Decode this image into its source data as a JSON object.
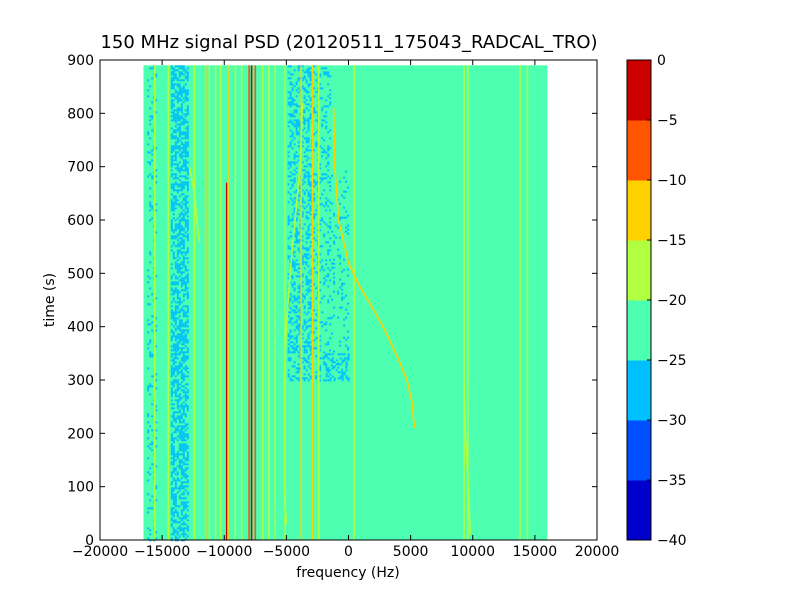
{
  "chart_data": {
    "type": "heatmap",
    "title": "150 MHz signal PSD (20120511_175043_RADCAL_TRO)",
    "xlabel": "frequency (Hz)",
    "ylabel": "time (s)",
    "xlim": [
      -20000,
      20000
    ],
    "ylim": [
      0,
      900
    ],
    "x_ticks": [
      -20000,
      -15000,
      -10000,
      -5000,
      0,
      5000,
      10000,
      15000,
      20000
    ],
    "y_ticks": [
      0,
      100,
      200,
      300,
      400,
      500,
      600,
      700,
      800,
      900
    ],
    "data_extent": {
      "x": [
        -16500,
        16000
      ],
      "y": [
        0,
        890
      ]
    },
    "background_level": -22.5,
    "colorbar": {
      "levels": [
        -40,
        -35,
        -30,
        -25,
        -20,
        -15,
        -10,
        -5,
        0
      ],
      "tick_labels": [
        "−40",
        "−35",
        "−30",
        "−25",
        "−20",
        "−15",
        "−10",
        "−5",
        "0"
      ],
      "colors": [
        "#0000cd",
        "#0050ff",
        "#00c0ff",
        "#4dffb0",
        "#b0ff40",
        "#ffd000",
        "#ff5500",
        "#cd0000"
      ]
    },
    "noise_bands": [
      {
        "x": [
          -14300,
          -12900
        ],
        "y": [
          0,
          890
        ],
        "level": -27.5,
        "density": 0.55
      },
      {
        "x": [
          -16200,
          -15500
        ],
        "y": [
          0,
          890
        ],
        "level": -27.5,
        "density": 0.15
      },
      {
        "x": [
          -4900,
          -3100
        ],
        "y": [
          300,
          890
        ],
        "level": -27.5,
        "density": 0.35
      },
      {
        "x": [
          -3000,
          -1500
        ],
        "y": [
          300,
          890
        ],
        "level": -27.5,
        "density": 0.2
      },
      {
        "x": [
          -1400,
          0
        ],
        "y": [
          320,
          700
        ],
        "level": -27.5,
        "density": 0.12
      },
      {
        "x": [
          -2000,
          0
        ],
        "y": [
          300,
          350
        ],
        "level": -27.5,
        "density": 0.35
      }
    ],
    "lines": [
      {
        "x": -15600,
        "y": [
          0,
          890
        ],
        "level": -17.5
      },
      {
        "x": -14500,
        "y": [
          0,
          890
        ],
        "level": -17.5
      },
      {
        "x": -12400,
        "y": [
          0,
          890
        ],
        "level": -17.5
      },
      {
        "x": -11500,
        "y": [
          0,
          890
        ],
        "level": -12.5
      },
      {
        "x": -11200,
        "y": [
          0,
          890
        ],
        "level": -17.5
      },
      {
        "x": -10700,
        "y": [
          0,
          890
        ],
        "level": -17.5
      },
      {
        "x": -10300,
        "y": [
          0,
          890
        ],
        "level": -17.5
      },
      {
        "x": -9800,
        "y": [
          0,
          670
        ],
        "level": -2.5
      },
      {
        "x": -9700,
        "y": [
          0,
          890
        ],
        "level": -12.5
      },
      {
        "x": -9100,
        "y": [
          0,
          890
        ],
        "level": -17.5
      },
      {
        "x": -8600,
        "y": [
          0,
          890
        ],
        "level": -17.5
      },
      {
        "x": -8000,
        "y": [
          0,
          890
        ],
        "level": -7.5
      },
      {
        "x": -7800,
        "y": [
          0,
          890
        ],
        "level": -2.5
      },
      {
        "x": -7500,
        "y": [
          0,
          890
        ],
        "level": -7.5
      },
      {
        "x": -6900,
        "y": [
          0,
          890
        ],
        "level": -17.5
      },
      {
        "x": -6400,
        "y": [
          0,
          890
        ],
        "level": -17.5
      },
      {
        "x": -5900,
        "y": [
          0,
          890
        ],
        "level": -17.5
      },
      {
        "x": -5100,
        "y": [
          0,
          890
        ],
        "level": -17.5
      },
      {
        "x": -3800,
        "y": [
          0,
          890
        ],
        "level": -12.5
      },
      {
        "x": -2900,
        "y": [
          0,
          890
        ],
        "level": -12.5
      },
      {
        "x": -2400,
        "y": [
          0,
          890
        ],
        "level": -17.5
      },
      {
        "x": 450,
        "y": [
          0,
          890
        ],
        "level": -17.5
      },
      {
        "x": 9300,
        "y": [
          0,
          890
        ],
        "level": -17.5
      },
      {
        "x": 9600,
        "y": [
          0,
          890
        ],
        "level": -17.5
      },
      {
        "x": 13800,
        "y": [
          0,
          890
        ],
        "level": -17.5
      },
      {
        "x": 14400,
        "y": [
          0,
          890
        ],
        "level": -17.5
      }
    ],
    "tracks": [
      {
        "level": -12.5,
        "points": [
          [
            -1200,
            810
          ],
          [
            -1100,
            700
          ],
          [
            -800,
            600
          ],
          [
            0,
            520
          ],
          [
            800,
            480
          ],
          [
            1800,
            440
          ],
          [
            3000,
            390
          ],
          [
            4000,
            340
          ],
          [
            4700,
            300
          ],
          [
            5100,
            260
          ],
          [
            5300,
            210
          ]
        ]
      },
      {
        "level": -17.5,
        "points": [
          [
            -12800,
            700
          ],
          [
            -12400,
            650
          ],
          [
            -12200,
            600
          ],
          [
            -12000,
            560
          ]
        ]
      },
      {
        "level": -17.5,
        "points": [
          [
            -3700,
            820
          ],
          [
            -3700,
            820
          ],
          [
            -3900,
            700
          ],
          [
            -4300,
            600
          ],
          [
            -4700,
            500
          ],
          [
            -5000,
            400
          ],
          [
            -5200,
            300
          ],
          [
            -5200,
            100
          ],
          [
            -5000,
            30
          ]
        ]
      },
      {
        "level": -17.5,
        "points": [
          [
            9800,
            10
          ],
          [
            9600,
            120
          ],
          [
            9400,
            200
          ],
          [
            9300,
            300
          ]
        ]
      }
    ]
  }
}
